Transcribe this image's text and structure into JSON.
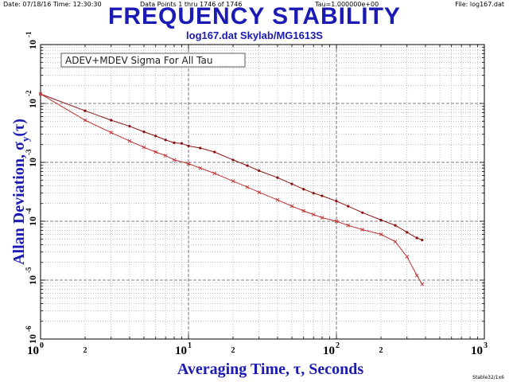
{
  "header": {
    "date_time": "Date: 07/18/16   Time: 12:30:30",
    "data_points": "Data Points 1 thru 1746 of 1746",
    "tau": "Tau=1.000000e+00",
    "file": "File: log167.dat"
  },
  "footer": {
    "note": "Stable32/1x6"
  },
  "chart_data": {
    "type": "line",
    "title": "FREQUENCY STABILITY",
    "subtitle": "log167.dat Skylab/MG1613S",
    "annotation": "ADEV+MDEV Sigma For All Tau",
    "xlabel": "Averaging Time, τ, Seconds",
    "ylabel": "Allan Deviation, σ",
    "ylabel_sub": "y",
    "ylabel_tail": "(τ)",
    "x_scale": "log",
    "y_scale": "log",
    "xlim": [
      1,
      1000
    ],
    "ylim": [
      1e-06,
      0.1
    ],
    "x_major_ticks": [
      {
        "base": "10",
        "exp": "0",
        "value": 1
      },
      {
        "base": "10",
        "exp": "1",
        "value": 10
      },
      {
        "base": "10",
        "exp": "2",
        "value": 100
      },
      {
        "base": "10",
        "exp": "3",
        "value": 1000
      }
    ],
    "x_minor_labels": [
      {
        "label": "2",
        "value": 2
      },
      {
        "label": "2",
        "value": 20
      },
      {
        "label": "2",
        "value": 200
      }
    ],
    "y_major_ticks": [
      {
        "base": "10",
        "exp": "-1",
        "value": 0.1
      },
      {
        "base": "10",
        "exp": "-2",
        "value": 0.01
      },
      {
        "base": "10",
        "exp": "-3",
        "value": 0.001
      },
      {
        "base": "10",
        "exp": "-4",
        "value": 0.0001
      },
      {
        "base": "10",
        "exp": "-5",
        "value": 1e-05
      },
      {
        "base": "10",
        "exp": "-6",
        "value": 1e-06
      }
    ],
    "grid": true,
    "series": [
      {
        "color": "#8b1010",
        "marker": "dot",
        "points": [
          [
            1,
            0.0145
          ],
          [
            2,
            0.0075
          ],
          [
            3,
            0.0052
          ],
          [
            4,
            0.0041
          ],
          [
            5,
            0.0033
          ],
          [
            6,
            0.0028
          ],
          [
            7,
            0.0024
          ],
          [
            8,
            0.00215
          ],
          [
            9,
            0.0021
          ],
          [
            10,
            0.0019
          ],
          [
            12,
            0.00175
          ],
          [
            15,
            0.0015
          ],
          [
            20,
            0.0011
          ],
          [
            25,
            0.00088
          ],
          [
            30,
            0.00072
          ],
          [
            40,
            0.00055
          ],
          [
            50,
            0.00043
          ],
          [
            60,
            0.00035
          ],
          [
            70,
            0.0003
          ],
          [
            80,
            0.00027
          ],
          [
            100,
            0.00022
          ],
          [
            120,
            0.00018
          ],
          [
            150,
            0.00014
          ],
          [
            200,
            0.000105
          ],
          [
            250,
            8.5e-05
          ],
          [
            300,
            6.5e-05
          ],
          [
            350,
            5.2e-05
          ],
          [
            380,
            4.8e-05
          ]
        ]
      },
      {
        "color": "#c03030",
        "marker": "cross",
        "points": [
          [
            1,
            0.0145
          ],
          [
            2,
            0.0052
          ],
          [
            3,
            0.0032
          ],
          [
            4,
            0.0023
          ],
          [
            5,
            0.0018
          ],
          [
            6,
            0.0015
          ],
          [
            7,
            0.0013
          ],
          [
            8,
            0.0011
          ],
          [
            10,
            0.00095
          ],
          [
            12,
            0.0008
          ],
          [
            15,
            0.00065
          ],
          [
            20,
            0.00048
          ],
          [
            25,
            0.00038
          ],
          [
            30,
            0.00031
          ],
          [
            40,
            0.00023
          ],
          [
            50,
            0.00018
          ],
          [
            60,
            0.00015
          ],
          [
            70,
            0.00013
          ],
          [
            80,
            0.000115
          ],
          [
            100,
            0.0001
          ],
          [
            120,
            8.5e-05
          ],
          [
            150,
            7.2e-05
          ],
          [
            200,
            6e-05
          ],
          [
            250,
            4.5e-05
          ],
          [
            300,
            2.5e-05
          ],
          [
            350,
            1.2e-05
          ],
          [
            380,
            8.5e-06
          ]
        ]
      }
    ]
  }
}
